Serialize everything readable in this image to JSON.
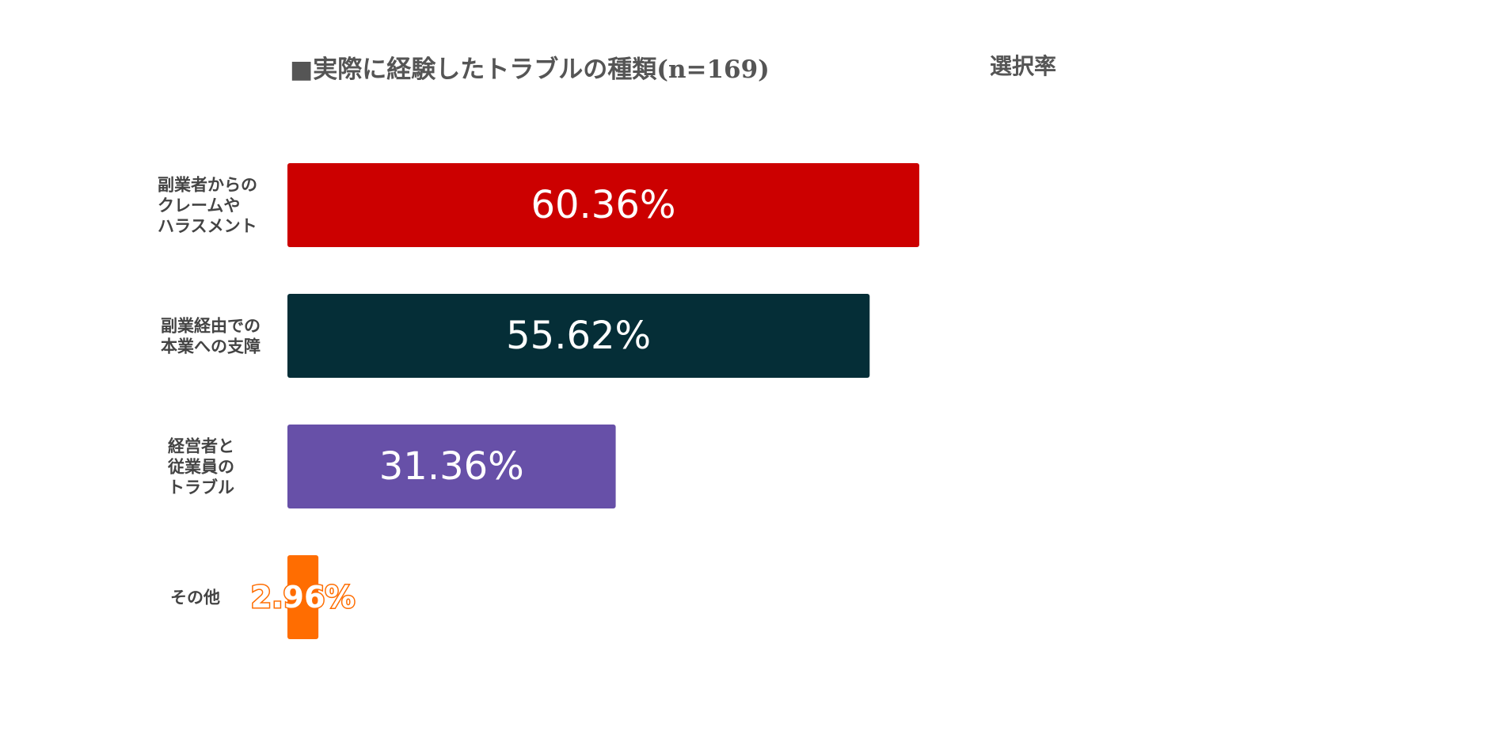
{
  "chart_data": {
    "type": "bar",
    "orientation": "horizontal",
    "title": "■実際に経験したトラブルの種類(n=169)",
    "value_header": "選択率",
    "categories": [
      [
        "副業者からの",
        "クレームや",
        "ハラスメント"
      ],
      [
        "副業経由での",
        "本業への支障"
      ],
      [
        "経営者と",
        "従業員の",
        "トラブル"
      ],
      [
        "その他"
      ]
    ],
    "values": [
      60.36,
      55.62,
      31.36,
      2.96
    ],
    "value_labels": [
      "60.36%",
      "55.62%",
      "31.36%",
      "2.96%"
    ],
    "colors": [
      "#cc0000",
      "#052e37",
      "#6750a8",
      "#ff6d01"
    ],
    "xlim": [
      0,
      100
    ],
    "grid": false,
    "legend": "none"
  }
}
